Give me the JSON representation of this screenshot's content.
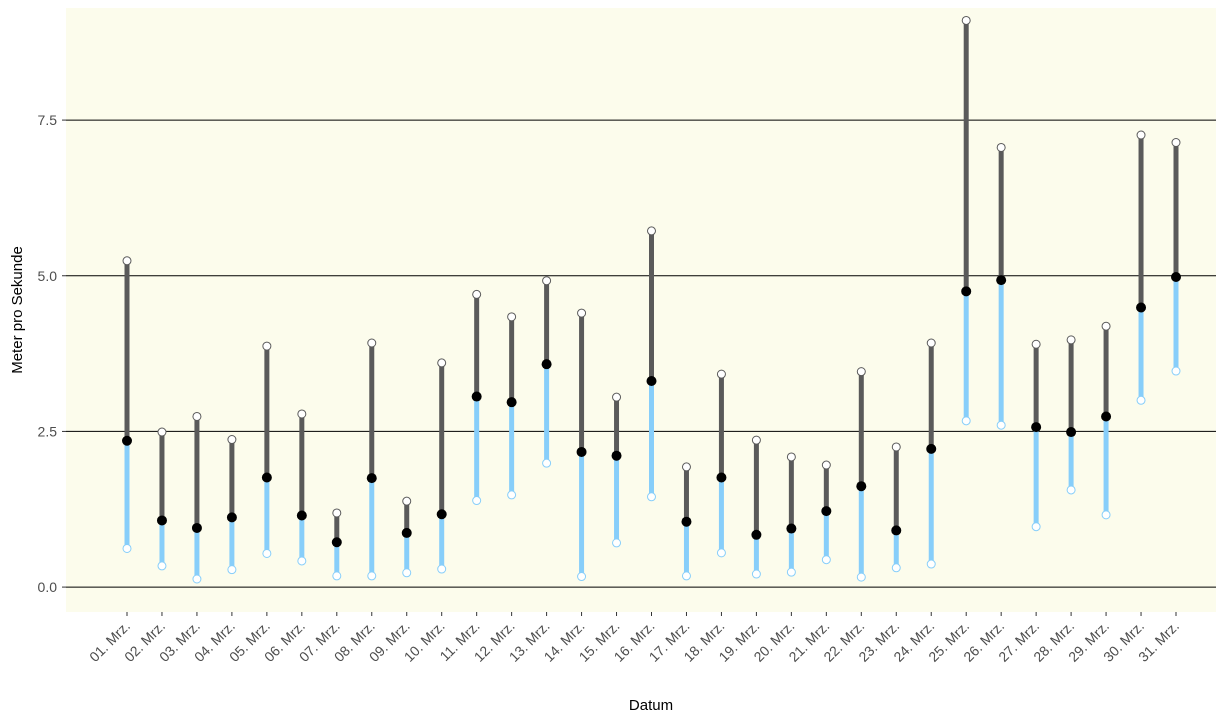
{
  "chart_data": {
    "type": "range-dot",
    "xlabel": "Datum",
    "ylabel": "Meter pro Sekunde",
    "ylim": [
      -0.4,
      9.3
    ],
    "yticks": [
      0.0,
      2.5,
      5.0,
      7.5
    ],
    "ytick_labels": [
      "0.0",
      "2.5",
      "5.0",
      "7.5"
    ],
    "grid": "horizontal major",
    "categories": [
      "01. Mrz.",
      "02. Mrz.",
      "03. Mrz.",
      "04. Mrz.",
      "05. Mrz.",
      "06. Mrz.",
      "07. Mrz.",
      "08. Mrz.",
      "09. Mrz.",
      "10. Mrz.",
      "11. Mrz.",
      "12. Mrz.",
      "13. Mrz.",
      "14. Mrz.",
      "15. Mrz.",
      "16. Mrz.",
      "17. Mrz.",
      "18. Mrz.",
      "19. Mrz.",
      "20. Mrz.",
      "21. Mrz.",
      "22. Mrz.",
      "23. Mrz.",
      "24. Mrz.",
      "25. Mrz.",
      "26. Mrz.",
      "27. Mrz.",
      "28. Mrz.",
      "29. Mrz.",
      "30. Mrz.",
      "31. Mrz."
    ],
    "series": [
      {
        "values": [
          0.62,
          0.34,
          0.13,
          0.28,
          0.54,
          0.42,
          0.18,
          0.18,
          0.23,
          0.29,
          1.39,
          1.48,
          1.99,
          0.17,
          0.71,
          1.45,
          0.18,
          0.55,
          0.21,
          0.24,
          0.44,
          0.16,
          0.31,
          0.37,
          2.67,
          2.6,
          0.97,
          1.56,
          1.16,
          3.0,
          3.47
        ]
      },
      {
        "values": [
          2.35,
          1.07,
          0.95,
          1.12,
          1.76,
          1.15,
          0.72,
          1.75,
          0.87,
          1.17,
          3.06,
          2.97,
          3.58,
          2.17,
          2.11,
          3.31,
          1.05,
          1.76,
          0.84,
          0.94,
          1.22,
          1.62,
          0.91,
          2.22,
          4.75,
          4.93,
          2.57,
          2.49,
          2.74,
          4.49,
          4.98
        ]
      },
      {
        "values": [
          5.24,
          2.49,
          2.74,
          2.37,
          3.87,
          2.78,
          1.19,
          3.92,
          1.38,
          3.6,
          4.7,
          4.34,
          4.92,
          4.4,
          3.05,
          5.72,
          1.93,
          3.42,
          2.36,
          2.09,
          1.96,
          3.46,
          2.25,
          3.92,
          9.1,
          7.06,
          3.9,
          3.97,
          4.19,
          7.26,
          7.14
        ]
      }
    ],
    "colors": {
      "panel_background": "#fcfcec",
      "lower_segment": "#87cefa",
      "upper_segment": "#5a5a5a",
      "median_point": "#000000",
      "grid": "#000000",
      "tick_label": "#4d4d4d"
    }
  }
}
